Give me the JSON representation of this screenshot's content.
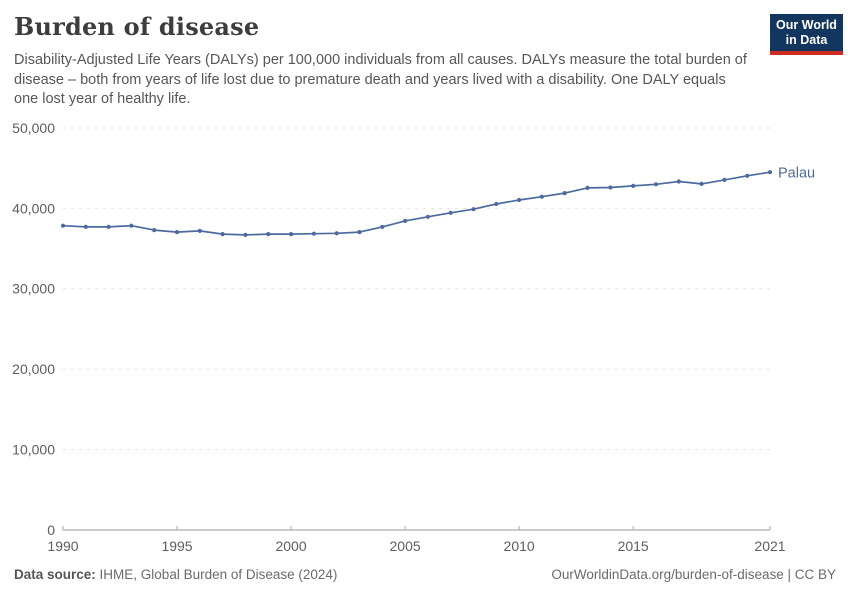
{
  "header": {
    "title": "Burden of disease",
    "subtitle": "Disability-Adjusted Life Years (DALYs) per 100,000 individuals from all causes. DALYs measure the total burden of disease – both from years of life lost due to premature death and years lived with a disability. One DALY equals one lost year of healthy life.",
    "logo_line1": "Our World",
    "logo_line2": "in Data"
  },
  "footer": {
    "source_label": "Data source:",
    "source_text": "IHME, Global Burden of Disease (2024)",
    "right_text": "OurWorldinData.org/burden-of-disease | CC BY"
  },
  "colors": {
    "line": "#4c6a9e",
    "grid": "#e2e2e2",
    "axis": "#999999",
    "tick": "#a9a9a9",
    "tick_text": "#5e5e5e",
    "logo_bg": "#13365f",
    "logo_red": "#cf2d23"
  },
  "chart_data": {
    "type": "line",
    "title": "Burden of disease",
    "xlabel": "",
    "ylabel": "DALYs per 100,000 individuals",
    "xlim": [
      1990,
      2021
    ],
    "ylim": [
      0,
      50000
    ],
    "xticks": [
      1990,
      1995,
      2000,
      2005,
      2010,
      2015,
      2021
    ],
    "yticks": [
      0,
      10000,
      20000,
      30000,
      40000,
      50000
    ],
    "grid": "horizontal-dashed",
    "legend": "end-of-line-label",
    "x": [
      1990,
      1991,
      1992,
      1993,
      1994,
      1995,
      1996,
      1997,
      1998,
      1999,
      2000,
      2001,
      2002,
      2003,
      2004,
      2005,
      2006,
      2007,
      2008,
      2009,
      2010,
      2011,
      2012,
      2013,
      2014,
      2015,
      2016,
      2017,
      2018,
      2019,
      2020,
      2021
    ],
    "series": [
      {
        "name": "Palau",
        "color": "#4c6a9e",
        "values": [
          37850,
          37700,
          37700,
          37850,
          37300,
          37050,
          37200,
          36800,
          36700,
          36800,
          36800,
          36850,
          36900,
          37050,
          37700,
          38450,
          38950,
          39450,
          39900,
          40550,
          41050,
          41450,
          41900,
          42550,
          42600,
          42800,
          43000,
          43350,
          43050,
          43550,
          44050,
          44500
        ]
      }
    ]
  }
}
